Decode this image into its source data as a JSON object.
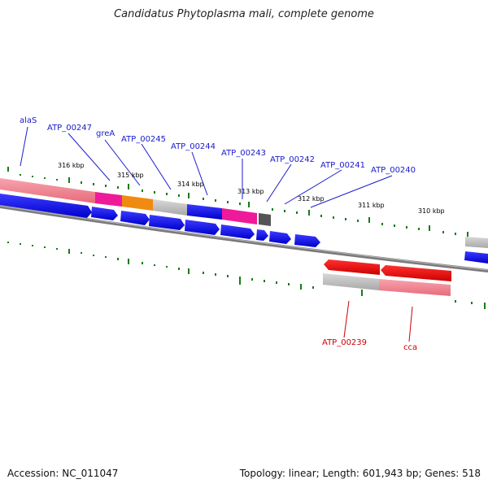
{
  "title": "Candidatus Phytoplasma mali, complete genome",
  "footer": {
    "accession": "Accession: NC_011047",
    "summary": "Topology: linear; Length: 601,943 bp; Genes: 518"
  },
  "ticks": [
    {
      "label": "316 kbp"
    },
    {
      "label": "315 kbp"
    },
    {
      "label": "314 kbp"
    },
    {
      "label": "313 kbp"
    },
    {
      "label": "312 kbp"
    },
    {
      "label": "311 kbp"
    },
    {
      "label": "310 kbp"
    }
  ],
  "gene_labels": [
    {
      "label": "alaS",
      "color": "#1a1acc"
    },
    {
      "label": "ATP_00247",
      "color": "#1a1acc"
    },
    {
      "label": "greA",
      "color": "#1a1acc"
    },
    {
      "label": "ATP_00245",
      "color": "#1a1acc"
    },
    {
      "label": "ATP_00244",
      "color": "#1a1acc"
    },
    {
      "label": "ATP_00243",
      "color": "#1a1acc"
    },
    {
      "label": "ATP_00242",
      "color": "#1a1acc"
    },
    {
      "label": "ATP_00241",
      "color": "#1a1acc"
    },
    {
      "label": "ATP_00240",
      "color": "#1a1acc"
    },
    {
      "label": "ATP_00239",
      "color": "#cc0000"
    },
    {
      "label": "cca",
      "color": "#cc0000"
    }
  ],
  "colors": {
    "forward_strand": "#0000ee",
    "reverse_strand": "#ee0000",
    "backbone": "#777777",
    "tick": "#1a7a1a",
    "pink": "#f07a8a",
    "magenta": "#ee1a99",
    "orange": "#f08a10",
    "gray": "#bbbbbb",
    "dark_gray": "#555555"
  }
}
